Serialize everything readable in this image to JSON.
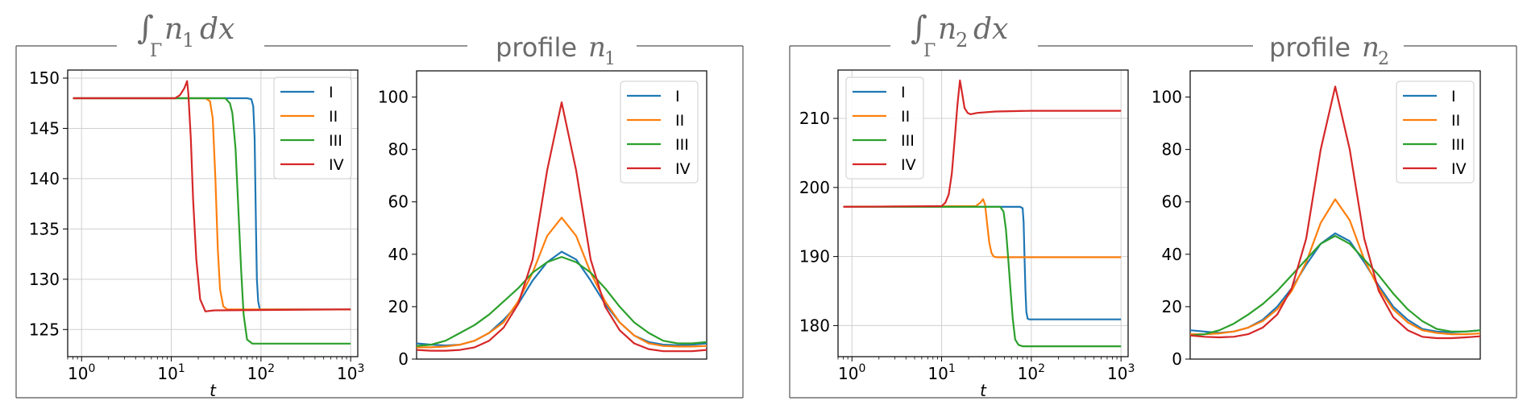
{
  "panels": [
    {
      "integral_title": {
        "integral": "∫",
        "sub": "Γ",
        "var": "n",
        "index": "1",
        "tail": "dx"
      },
      "profile_title": {
        "word": "profile",
        "var": "n",
        "index": "1"
      }
    },
    {
      "integral_title": {
        "integral": "∫",
        "sub": "Γ",
        "var": "n",
        "index": "2",
        "tail": "dx"
      },
      "profile_title": {
        "word": "profile",
        "var": "n",
        "index": "2"
      }
    }
  ],
  "colors": {
    "I": "#1f77b4",
    "II": "#ff7f0e",
    "III": "#2ca02c",
    "IV": "#d62728"
  },
  "chart_data": [
    {
      "type": "line",
      "name": "integral-n1",
      "xscale": "log",
      "xlim": [
        0.7,
        1200
      ],
      "ylim": [
        122.3,
        150.8
      ],
      "xlabel": "t",
      "ylabel": "",
      "xticks": [
        {
          "v": 1,
          "b": "10",
          "e": "0"
        },
        {
          "v": 10,
          "b": "10",
          "e": "1"
        },
        {
          "v": 100,
          "b": "10",
          "e": "2"
        },
        {
          "v": 1000,
          "b": "10",
          "e": "3"
        }
      ],
      "yticks": [
        125,
        130,
        135,
        140,
        145,
        150
      ],
      "legend": "top-right",
      "grid": true,
      "series": [
        {
          "name": "I",
          "x": [
            0.8,
            70,
            78,
            82,
            85,
            88,
            90,
            93,
            97,
            100,
            1000
          ],
          "y": [
            148,
            148,
            147.9,
            147.2,
            144,
            135,
            130,
            127.8,
            127,
            127,
            127
          ]
        },
        {
          "name": "II",
          "x": [
            0.8,
            24,
            27,
            29,
            31,
            33,
            35,
            38,
            42,
            1000
          ],
          "y": [
            148,
            148,
            147.7,
            146,
            140,
            133,
            129,
            127.3,
            127,
            127
          ]
        },
        {
          "name": "III",
          "x": [
            0.8,
            40,
            45,
            48,
            52,
            56,
            60,
            64,
            70,
            80,
            1000
          ],
          "y": [
            148,
            148,
            147.5,
            146.5,
            143,
            137,
            131,
            126.5,
            124,
            123.6,
            123.6
          ]
        },
        {
          "name": "IV",
          "x": [
            0.8,
            11,
            12.5,
            14,
            15,
            15.5,
            16.5,
            17.5,
            19,
            21,
            24,
            30,
            1000
          ],
          "y": [
            148,
            148,
            148.3,
            149,
            149.7,
            148.5,
            144,
            138,
            132,
            128,
            126.8,
            126.9,
            127
          ]
        }
      ]
    },
    {
      "type": "line",
      "name": "profile-n1",
      "xlim": [
        0,
        100
      ],
      "ylim": [
        0,
        110
      ],
      "xlabel": "",
      "ylabel": "",
      "yticks": [
        0,
        20,
        40,
        60,
        80,
        100
      ],
      "legend": "top-right",
      "grid": false,
      "series": [
        {
          "name": "I",
          "x": [
            0,
            5,
            10,
            15,
            20,
            25,
            30,
            35,
            40,
            45,
            50,
            55,
            60,
            65,
            70,
            75,
            80,
            85,
            90,
            95,
            100
          ],
          "y": [
            6,
            5.5,
            5.2,
            5.5,
            7,
            10,
            15,
            21,
            30,
            37,
            41,
            38,
            30,
            21,
            14,
            9,
            6.5,
            5.5,
            5.3,
            5.5,
            6
          ]
        },
        {
          "name": "II",
          "x": [
            0,
            5,
            10,
            15,
            20,
            25,
            30,
            35,
            40,
            45,
            50,
            55,
            60,
            65,
            70,
            75,
            80,
            85,
            90,
            95,
            100
          ],
          "y": [
            4.5,
            4.5,
            4.8,
            5.5,
            7,
            10,
            14,
            22,
            33,
            47,
            54,
            47,
            33,
            22,
            14,
            9,
            6,
            5,
            4.8,
            4.8,
            5
          ]
        },
        {
          "name": "III",
          "x": [
            0,
            5,
            10,
            15,
            20,
            25,
            30,
            35,
            40,
            45,
            50,
            55,
            60,
            65,
            70,
            75,
            80,
            85,
            90,
            95,
            100
          ],
          "y": [
            5,
            5.5,
            7,
            10,
            13,
            17,
            22,
            27,
            33,
            37,
            39,
            37,
            33,
            27,
            20,
            14,
            10,
            7,
            6,
            6,
            6.5
          ]
        },
        {
          "name": "IV",
          "x": [
            0,
            5,
            10,
            15,
            20,
            25,
            30,
            35,
            40,
            45,
            50,
            55,
            60,
            65,
            70,
            75,
            80,
            85,
            90,
            95,
            100
          ],
          "y": [
            3.5,
            3.2,
            3.2,
            3.5,
            4.5,
            7,
            12,
            21,
            38,
            72,
            98,
            72,
            38,
            20,
            11,
            6,
            3.8,
            3,
            3,
            3,
            3.5
          ]
        }
      ]
    },
    {
      "type": "line",
      "name": "integral-n2",
      "xscale": "log",
      "xlim": [
        0.7,
        1200
      ],
      "ylim": [
        175.5,
        217
      ],
      "xlabel": "t",
      "ylabel": "",
      "xticks": [
        {
          "v": 1,
          "b": "10",
          "e": "0"
        },
        {
          "v": 10,
          "b": "10",
          "e": "1"
        },
        {
          "v": 100,
          "b": "10",
          "e": "2"
        },
        {
          "v": 1000,
          "b": "10",
          "e": "3"
        }
      ],
      "yticks": [
        180,
        190,
        200,
        210
      ],
      "legend": "top-left",
      "grid": true,
      "series": [
        {
          "name": "I",
          "x": [
            0.8,
            75,
            80,
            82,
            84,
            86,
            88,
            91,
            95,
            1000
          ],
          "y": [
            197.2,
            197.2,
            197,
            195,
            190,
            185,
            182,
            181,
            180.9,
            180.9
          ]
        },
        {
          "name": "II",
          "x": [
            0.8,
            24,
            27,
            29,
            30.5,
            32,
            34,
            36,
            38,
            41,
            45,
            1000
          ],
          "y": [
            197.2,
            197.3,
            197.8,
            198.3,
            197.5,
            195,
            192,
            190.5,
            190,
            189.9,
            189.9,
            189.9
          ]
        },
        {
          "name": "III",
          "x": [
            0.8,
            45,
            49,
            52,
            55,
            58,
            62,
            66,
            72,
            80,
            1000
          ],
          "y": [
            197.2,
            197.2,
            196.5,
            194,
            190,
            186,
            181,
            178,
            177.2,
            177,
            177
          ]
        },
        {
          "name": "IV",
          "x": [
            0.8,
            10,
            11,
            12,
            13,
            14,
            15,
            16,
            17,
            18,
            19.5,
            21,
            25,
            40,
            100,
            1000
          ],
          "y": [
            197.2,
            197.3,
            197.8,
            199,
            202,
            207,
            212,
            215.5,
            213.5,
            211.5,
            210.8,
            210.6,
            210.8,
            211,
            211.1,
            211.1
          ]
        }
      ]
    },
    {
      "type": "line",
      "name": "profile-n2",
      "xlim": [
        0,
        100
      ],
      "ylim": [
        0,
        110
      ],
      "xlabel": "",
      "ylabel": "",
      "yticks": [
        0,
        20,
        40,
        60,
        80,
        100
      ],
      "legend": "top-right",
      "grid": false,
      "series": [
        {
          "name": "I",
          "x": [
            0,
            5,
            10,
            15,
            20,
            25,
            30,
            35,
            40,
            45,
            50,
            55,
            60,
            65,
            70,
            75,
            80,
            85,
            90,
            95,
            100
          ],
          "y": [
            11,
            10.5,
            10,
            10.5,
            12,
            15,
            20,
            27,
            36,
            44,
            48,
            45,
            37,
            28,
            20,
            15,
            11.5,
            10.5,
            10.2,
            10.5,
            11
          ]
        },
        {
          "name": "II",
          "x": [
            0,
            5,
            10,
            15,
            20,
            25,
            30,
            35,
            40,
            45,
            50,
            55,
            60,
            65,
            70,
            75,
            80,
            85,
            90,
            95,
            100
          ],
          "y": [
            9.5,
            9.5,
            9.8,
            10.5,
            12,
            14.5,
            19,
            26,
            37,
            52,
            61,
            53,
            38,
            27,
            19,
            14,
            11,
            10,
            9.5,
            9.5,
            9.8
          ]
        },
        {
          "name": "III",
          "x": [
            0,
            5,
            10,
            15,
            20,
            25,
            30,
            35,
            40,
            45,
            50,
            55,
            60,
            65,
            70,
            75,
            80,
            85,
            90,
            95,
            100
          ],
          "y": [
            9,
            9.5,
            11,
            13.5,
            17,
            21,
            26,
            32,
            38,
            44,
            47,
            44,
            38,
            32,
            25,
            19,
            14.5,
            11.5,
            10.5,
            10.5,
            11
          ]
        },
        {
          "name": "IV",
          "x": [
            0,
            5,
            10,
            15,
            20,
            25,
            30,
            35,
            40,
            45,
            50,
            55,
            60,
            65,
            70,
            75,
            80,
            85,
            90,
            95,
            100
          ],
          "y": [
            9,
            8.5,
            8.3,
            8.5,
            9.5,
            12,
            17,
            27,
            46,
            80,
            104,
            80,
            46,
            26,
            16,
            11,
            8.5,
            8,
            8,
            8.3,
            8.7
          ]
        }
      ]
    }
  ]
}
